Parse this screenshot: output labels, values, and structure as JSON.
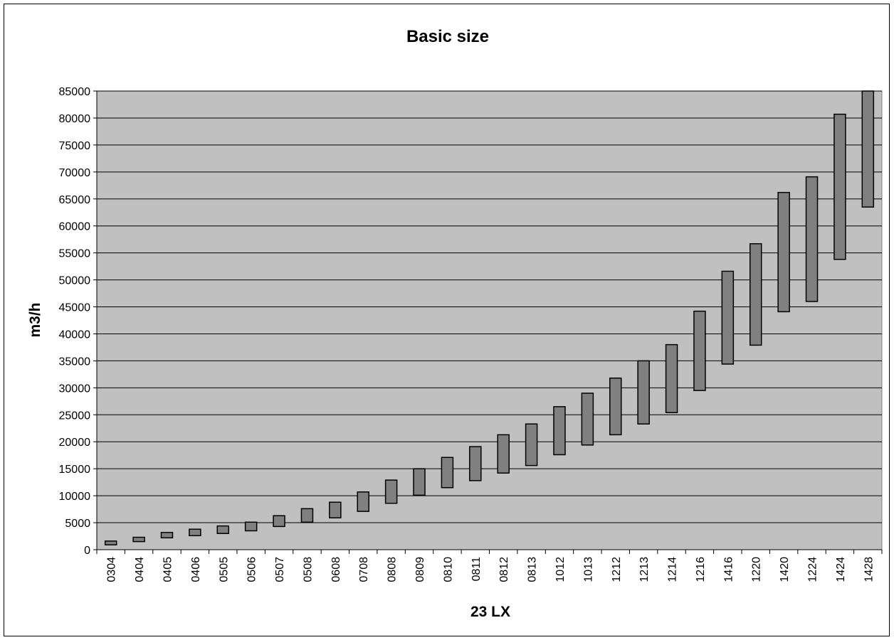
{
  "chart_data": {
    "type": "bar",
    "subtype": "floating-range",
    "title": "Basic size",
    "xlabel": "23 LX",
    "ylabel": "m3/h",
    "ylim": [
      0,
      85000
    ],
    "y_ticks": [
      0,
      5000,
      10000,
      15000,
      20000,
      25000,
      30000,
      35000,
      40000,
      45000,
      50000,
      55000,
      60000,
      65000,
      70000,
      75000,
      80000,
      85000
    ],
    "grid": true,
    "legend": "none",
    "plot_background": "#c0c0c0",
    "bar_color": "#808080",
    "categories": [
      "0304",
      "0404",
      "0405",
      "0406",
      "0505",
      "0506",
      "0507",
      "0508",
      "0608",
      "0708",
      "0808",
      "0809",
      "0810",
      "0811",
      "0812",
      "0813",
      "1012",
      "1013",
      "1212",
      "1213",
      "1214",
      "1216",
      "1416",
      "1220",
      "1420",
      "1224",
      "1424",
      "1428"
    ],
    "series": [
      {
        "low": [
          900,
          1500,
          2200,
          2600,
          3000,
          3500,
          4300,
          5100,
          5900,
          7100,
          8600,
          10100,
          11500,
          12800,
          14200,
          15600,
          17600,
          19400,
          21300,
          23300,
          25400,
          29500,
          34400,
          37900,
          44100,
          46000,
          53800,
          63500
        ],
        "high": [
          1600,
          2300,
          3200,
          3800,
          4400,
          5100,
          6300,
          7600,
          8800,
          10700,
          12900,
          15000,
          17100,
          19100,
          21300,
          23300,
          26500,
          29000,
          31800,
          35000,
          38000,
          44200,
          51600,
          56700,
          66200,
          69100,
          80700,
          85000
        ]
      }
    ]
  }
}
